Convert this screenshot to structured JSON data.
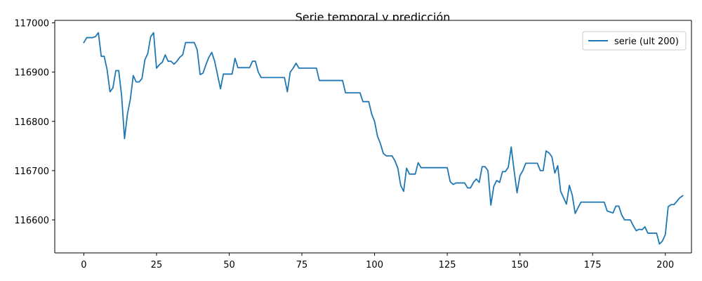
{
  "chart_data": {
    "type": "line",
    "title": "Serie temporal y predicción",
    "xlabel": "",
    "ylabel": "",
    "xlim": [
      -10,
      209
    ],
    "ylim": [
      116533,
      117005
    ],
    "xticks": [
      0,
      25,
      50,
      75,
      100,
      125,
      150,
      175,
      200
    ],
    "xtick_labels": [
      "0",
      "25",
      "50",
      "75",
      "100",
      "125",
      "150",
      "175",
      "200"
    ],
    "yticks": [
      116600,
      116700,
      116800,
      116900,
      117000
    ],
    "ytick_labels": [
      "116600",
      "116700",
      "116800",
      "116900",
      "117000"
    ],
    "grid": false,
    "legend_position": "top-right",
    "series": [
      {
        "name": "serie (ult 200)",
        "color": "#1f77b4",
        "values": [
          116960,
          116970,
          116970,
          116970,
          116972,
          116980,
          116932,
          116932,
          116905,
          116860,
          116868,
          116903,
          116903,
          116852,
          116765,
          116815,
          116845,
          116893,
          116880,
          116880,
          116887,
          116925,
          116938,
          116972,
          116980,
          116908,
          116915,
          116920,
          116935,
          116922,
          116922,
          116916,
          116922,
          116930,
          116935,
          116960,
          116960,
          116960,
          116960,
          116945,
          116895,
          116898,
          116915,
          116930,
          116940,
          116922,
          116894,
          116866,
          116896,
          116896,
          116896,
          116896,
          116928,
          116909,
          116909,
          116909,
          116909,
          116909,
          116922,
          116922,
          116900,
          116889,
          116889,
          116889,
          116889,
          116889,
          116889,
          116889,
          116889,
          116889,
          116860,
          116900,
          116908,
          116918,
          116908,
          116908,
          116908,
          116908,
          116908,
          116908,
          116908,
          116883,
          116883,
          116883,
          116883,
          116883,
          116883,
          116883,
          116883,
          116883,
          116858,
          116858,
          116858,
          116858,
          116858,
          116858,
          116840,
          116840,
          116840,
          116815,
          116800,
          116770,
          116755,
          116735,
          116730,
          116730,
          116730,
          116720,
          116705,
          116670,
          116658,
          116705,
          116693,
          116693,
          116693,
          116716,
          116706,
          116706,
          116706,
          116706,
          116706,
          116706,
          116706,
          116706,
          116706,
          116706,
          116678,
          116672,
          116675,
          116675,
          116675,
          116675,
          116665,
          116665,
          116676,
          116683,
          116676,
          116708,
          116708,
          116700,
          116630,
          116668,
          116680,
          116676,
          116698,
          116698,
          116707,
          116748,
          116700,
          116655,
          116690,
          116700,
          116715,
          116715,
          116715,
          116715,
          116715,
          116700,
          116700,
          116740,
          116736,
          116728,
          116695,
          116710,
          116658,
          116645,
          116632,
          116670,
          116650,
          116613,
          116625,
          116636,
          116636,
          116636,
          116636,
          116636,
          116636,
          116636,
          116636,
          116636,
          116618,
          116616,
          116614,
          116628,
          116628,
          116610,
          116600,
          116600,
          116600,
          116588,
          116578,
          116581,
          116580,
          116586,
          116573,
          116573,
          116573,
          116573,
          116551,
          116557,
          116570,
          116627,
          116631,
          116631,
          116638,
          116645,
          116649
        ]
      }
    ]
  }
}
